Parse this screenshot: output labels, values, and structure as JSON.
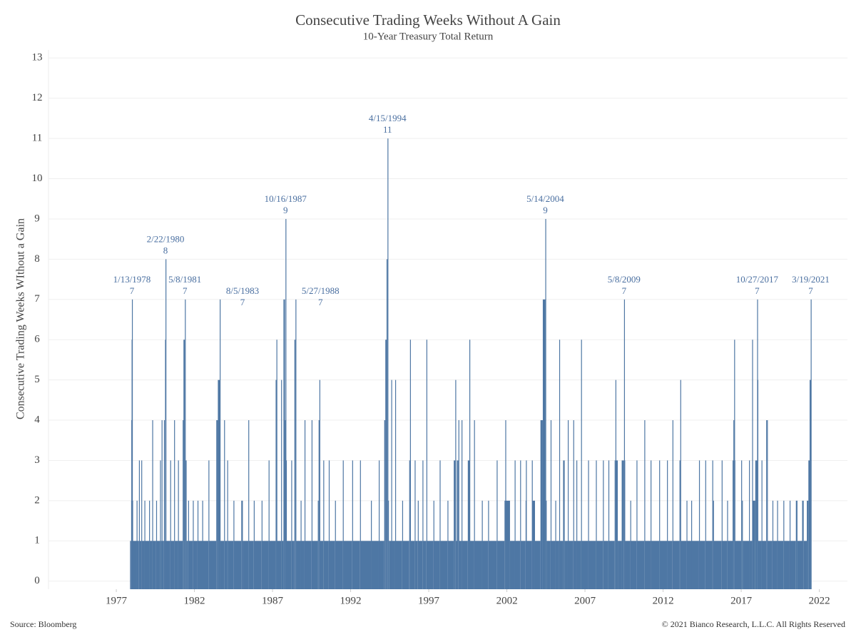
{
  "chart_data": {
    "type": "bar",
    "title": "Consecutive Trading Weeks Without A Gain",
    "subtitle": "10-Year Treasury Total Return",
    "y_label": "Consecutive Trading Weeks WIthout a Gain",
    "source": "Source: Bloomberg",
    "copyright": "© 2021 Bianco Research, L.L.C. All Rights Reserved",
    "color": "#4e77a4",
    "grid": true,
    "xlim": [
      1972.66,
      2023.8
    ],
    "xticks": [
      1977,
      1982,
      1987,
      1992,
      1997,
      2002,
      2007,
      2012,
      2017,
      2022
    ],
    "ylim": [
      -0.2,
      13.2
    ],
    "yticks": [
      0,
      1,
      2,
      3,
      4,
      5,
      6,
      7,
      8,
      9,
      10,
      11,
      12,
      13
    ],
    "x": [
      1977.88,
      1977.95,
      1977.96,
      1977.98,
      1978.0,
      1978.02,
      1978.06,
      1978.3,
      1978.32,
      1978.45,
      1978.47,
      1978.6,
      1978.62,
      1978.8,
      1978.82,
      1979.1,
      1979.12,
      1979.3,
      1979.32,
      1979.55,
      1979.57,
      1979.8,
      1979.82,
      1979.9,
      1979.92,
      1980.05,
      1980.07,
      1980.12,
      1980.15,
      1980.17,
      1980.45,
      1980.47,
      1980.7,
      1980.72,
      1980.95,
      1980.97,
      1981.25,
      1981.3,
      1981.39,
      1981.41,
      1981.5,
      1981.6,
      1981.64,
      1981.9,
      1981.95,
      1982.2,
      1982.22,
      1982.5,
      1982.52,
      1982.9,
      1982.92,
      1983.4,
      1983.5,
      1983.62,
      1983.64,
      1983.9,
      1983.92,
      1984.1,
      1984.15,
      1984.5,
      1984.52,
      1985.0,
      1985.1,
      1985.45,
      1985.47,
      1985.8,
      1985.82,
      1986.3,
      1986.32,
      1986.75,
      1986.77,
      1987.2,
      1987.25,
      1987.27,
      1987.55,
      1987.57,
      1987.7,
      1987.8,
      1987.83,
      1987.86,
      1987.9,
      1988.2,
      1988.22,
      1988.4,
      1988.47,
      1988.49,
      1988.8,
      1988.82,
      1989.05,
      1989.07,
      1989.5,
      1989.52,
      1989.9,
      1989.95,
      1990.0,
      1990.02,
      1990.25,
      1990.27,
      1990.6,
      1990.62,
      1991.0,
      1991.02,
      1991.5,
      1991.52,
      1992.1,
      1992.12,
      1992.6,
      1992.62,
      1993.3,
      1993.32,
      1993.8,
      1993.82,
      1994.15,
      1994.22,
      1994.3,
      1994.36,
      1994.38,
      1994.45,
      1994.6,
      1994.62,
      1994.85,
      1994.87,
      1995.3,
      1995.32,
      1995.75,
      1995.8,
      1995.82,
      1996.1,
      1996.12,
      1996.3,
      1996.32,
      1996.6,
      1996.62,
      1996.85,
      1996.87,
      1997.3,
      1997.32,
      1997.7,
      1997.72,
      1998.2,
      1998.22,
      1998.6,
      1998.7,
      1998.72,
      1998.8,
      1998.9,
      1998.92,
      1999.1,
      1999.12,
      1999.5,
      1999.6,
      1999.62,
      1999.9,
      1999.92,
      2000.4,
      2000.42,
      2000.8,
      2000.82,
      2001.35,
      2001.37,
      2001.85,
      2001.9,
      2001.92,
      2002.2,
      2002.5,
      2002.52,
      2002.85,
      2002.87,
      2003.2,
      2003.22,
      2003.24,
      2003.6,
      2003.62,
      2003.8,
      2004.15,
      2004.3,
      2004.46,
      2004.48,
      2004.55,
      2004.8,
      2004.82,
      2005.1,
      2005.12,
      2005.35,
      2005.37,
      2005.6,
      2005.7,
      2005.9,
      2005.92,
      2006.25,
      2006.27,
      2006.45,
      2006.47,
      2006.75,
      2006.77,
      2007.2,
      2007.22,
      2007.7,
      2007.72,
      2008.15,
      2008.17,
      2008.5,
      2008.52,
      2008.9,
      2008.95,
      2009.0,
      2009.1,
      2009.35,
      2009.5,
      2009.52,
      2009.56,
      2009.9,
      2009.92,
      2010.3,
      2010.32,
      2010.8,
      2010.82,
      2011.2,
      2011.22,
      2011.75,
      2011.77,
      2012.25,
      2012.27,
      2012.6,
      2012.62,
      2013.05,
      2013.1,
      2013.12,
      2013.5,
      2013.52,
      2013.8,
      2013.82,
      2014.3,
      2014.32,
      2014.7,
      2014.72,
      2015.15,
      2015.2,
      2015.22,
      2015.75,
      2015.77,
      2016.1,
      2016.12,
      2016.45,
      2016.5,
      2016.55,
      2016.57,
      2016.6,
      2017.0,
      2017.05,
      2017.1,
      2017.5,
      2017.52,
      2017.7,
      2017.72,
      2017.9,
      2018.02,
      2018.04,
      2018.06,
      2018.3,
      2018.32,
      2018.6,
      2018.65,
      2018.67,
      2019.0,
      2019.02,
      2019.3,
      2019.32,
      2019.7,
      2019.72,
      2020.1,
      2020.12,
      2020.5,
      2020.6,
      2020.9,
      2021.0,
      2021.2,
      2021.3,
      2021.38,
      2021.45
    ],
    "values": [
      1,
      2,
      4,
      6,
      7,
      2,
      1,
      2,
      1,
      3,
      1,
      3,
      1,
      2,
      1,
      2,
      1,
      4,
      1,
      2,
      1,
      3,
      1,
      4,
      1,
      4,
      1,
      6,
      8,
      1,
      3,
      1,
      4,
      1,
      3,
      1,
      4,
      6,
      7,
      3,
      1,
      2,
      1,
      2,
      1,
      2,
      1,
      2,
      1,
      3,
      1,
      4,
      5,
      7,
      1,
      4,
      1,
      3,
      1,
      2,
      1,
      2,
      1,
      4,
      1,
      2,
      1,
      2,
      1,
      3,
      1,
      5,
      6,
      1,
      5,
      1,
      7,
      4,
      9,
      3,
      1,
      3,
      1,
      6,
      7,
      1,
      2,
      1,
      4,
      1,
      4,
      1,
      2,
      4,
      5,
      1,
      3,
      1,
      3,
      1,
      2,
      1,
      3,
      1,
      3,
      1,
      3,
      1,
      2,
      1,
      3,
      1,
      4,
      6,
      8,
      11,
      2,
      1,
      5,
      1,
      5,
      1,
      2,
      1,
      3,
      6,
      1,
      3,
      1,
      2,
      1,
      3,
      1,
      6,
      1,
      2,
      1,
      3,
      1,
      2,
      1,
      3,
      5,
      1,
      3,
      4,
      1,
      4,
      1,
      3,
      6,
      1,
      4,
      1,
      2,
      1,
      2,
      1,
      3,
      1,
      2,
      4,
      2,
      1,
      3,
      1,
      3,
      1,
      2,
      3,
      1,
      3,
      2,
      1,
      4,
      7,
      9,
      2,
      1,
      4,
      1,
      2,
      1,
      6,
      1,
      3,
      1,
      4,
      1,
      4,
      1,
      3,
      1,
      6,
      1,
      3,
      1,
      3,
      1,
      3,
      1,
      3,
      1,
      3,
      5,
      3,
      1,
      3,
      7,
      3,
      1,
      2,
      1,
      3,
      1,
      4,
      1,
      3,
      1,
      3,
      1,
      3,
      1,
      4,
      1,
      3,
      5,
      1,
      2,
      1,
      2,
      1,
      3,
      1,
      3,
      1,
      3,
      2,
      1,
      3,
      1,
      2,
      1,
      3,
      4,
      6,
      3,
      1,
      3,
      2,
      1,
      3,
      1,
      6,
      2,
      3,
      7,
      5,
      1,
      3,
      1,
      4,
      4,
      1,
      2,
      1,
      2,
      1,
      2,
      1,
      2,
      1,
      2,
      1,
      2,
      1,
      2,
      3,
      5,
      7
    ],
    "annotations": [
      {
        "date": "1/13/1978",
        "x": 1978.0,
        "value": 7
      },
      {
        "date": "2/22/1980",
        "x": 1980.15,
        "value": 8
      },
      {
        "date": "5/8/1981",
        "x": 1981.39,
        "value": 7
      },
      {
        "date": "8/5/1983",
        "x": 1983.62,
        "value": 7
      },
      {
        "date": "10/16/1987",
        "x": 1987.83,
        "value": 9
      },
      {
        "date": "5/27/1988",
        "x": 1988.47,
        "value": 7
      },
      {
        "date": "4/15/1994",
        "x": 1994.36,
        "value": 11
      },
      {
        "date": "5/14/2004",
        "x": 2004.46,
        "value": 9
      },
      {
        "date": "5/8/2009",
        "x": 2009.5,
        "value": 7
      },
      {
        "date": "10/27/2017",
        "x": 2018.02,
        "value": 7
      },
      {
        "date": "3/19/2021",
        "x": 2021.45,
        "value": 7
      }
    ]
  }
}
